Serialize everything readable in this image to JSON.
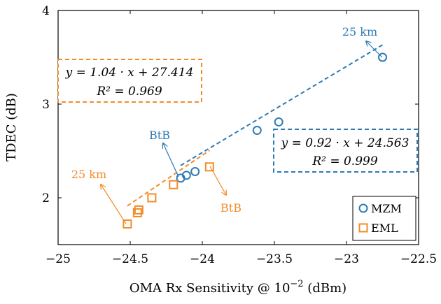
{
  "chart_data": {
    "type": "scatter",
    "xlabel": "OMA Rx Sensitivity @ 10",
    "xlabel_exp": "−2",
    "xlabel_unit": " (dBm)",
    "ylabel": "TDEC (dB)",
    "xlim": [
      -25,
      -22.5
    ],
    "ylim": [
      1.5,
      4
    ],
    "grid": false,
    "legend_placement": "bottom-right",
    "xticks": [
      -25,
      -24.5,
      -24,
      -23.5,
      -23,
      -22.5
    ],
    "xtick_labels": [
      "−25",
      "−24.5",
      "−24",
      "−23.5",
      "−23",
      "−22.5"
    ],
    "yticks": [
      2,
      3,
      4
    ],
    "ytick_labels": [
      "2",
      "3",
      "4"
    ],
    "series": [
      {
        "name": "MZM",
        "marker": "circle",
        "color": "#2e7bb4",
        "x": [
          -24.15,
          -24.11,
          -24.05,
          -23.62,
          -23.47,
          -22.75
        ],
        "y": [
          2.21,
          2.24,
          2.28,
          2.72,
          2.81,
          3.5
        ],
        "fit": {
          "slope": 0.92,
          "intercept": 24.563
        }
      },
      {
        "name": "EML",
        "marker": "square",
        "color": "#f28c28",
        "x": [
          -24.52,
          -24.45,
          -24.44,
          -24.35,
          -24.2,
          -23.95
        ],
        "y": [
          1.72,
          1.84,
          1.87,
          2.0,
          2.14,
          2.33
        ],
        "fit": {
          "slope": 1.04,
          "intercept": 27.414
        }
      }
    ],
    "annotations": {
      "eml_eq": {
        "line1": "y = 1.04 · x + 27.414",
        "line2": "R² = 0.969",
        "color": "#f28c28"
      },
      "mzm_eq": {
        "line1": "y = 0.92 · x + 24.563",
        "line2": "R² = 0.999",
        "color": "#2e7bb4"
      },
      "callouts": [
        {
          "text": "25 km",
          "color": "#2e7bb4",
          "ref": "MZM-far"
        },
        {
          "text": "BtB",
          "color": "#2e7bb4",
          "ref": "MZM-btb"
        },
        {
          "text": "25 km",
          "color": "#f28c28",
          "ref": "EML-far"
        },
        {
          "text": "BtB",
          "color": "#f28c28",
          "ref": "EML-btb"
        }
      ]
    }
  }
}
